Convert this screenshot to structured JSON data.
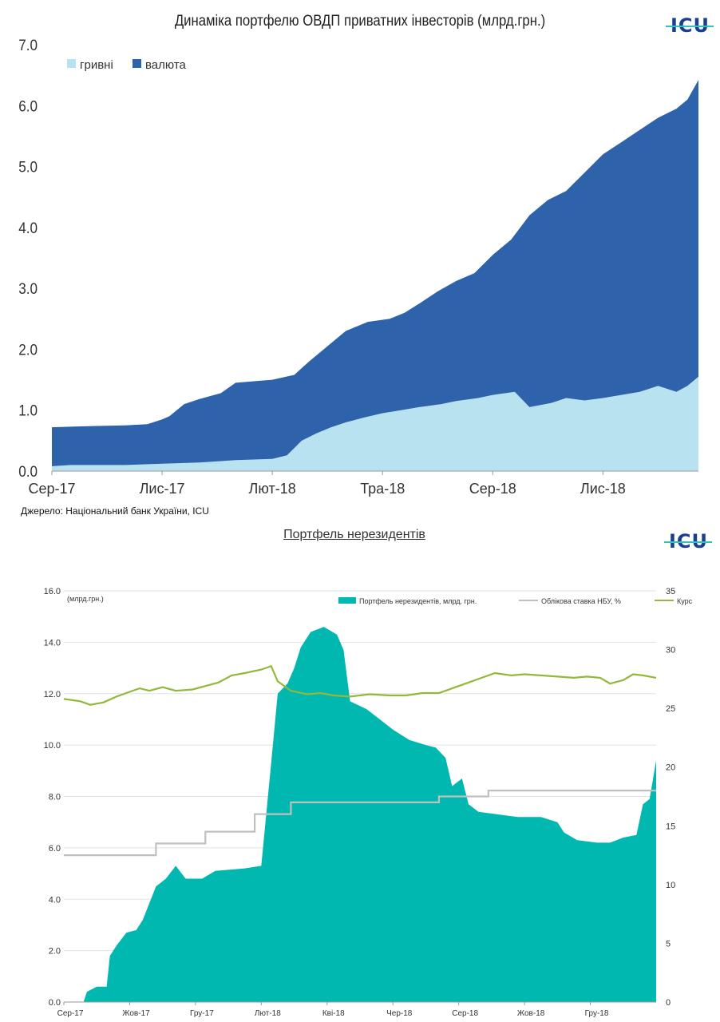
{
  "chart1": {
    "title": "Динаміка портфелю ОВДП приватних інвесторів (млрд.грн.)",
    "source": "Джерело: Національний банк України, ICU",
    "logo": "ICU",
    "type": "area",
    "legend": [
      {
        "name": "гривні",
        "color": "#b8e2ef"
      },
      {
        "name": "валюта",
        "color": "#2e62ab"
      }
    ],
    "y_ticks": [
      "0.0",
      "1.0",
      "2.0",
      "3.0",
      "4.0",
      "5.0",
      "6.0",
      "7.0"
    ],
    "x_ticks": [
      "Сер-17",
      "Лис-17",
      "Лют-18",
      "Тра-18",
      "Сер-18",
      "Лис-18"
    ],
    "ylim": [
      0,
      7
    ],
    "xlim": [
      0,
      17.6
    ],
    "total": [
      [
        0,
        0.72
      ],
      [
        0.6,
        0.73
      ],
      [
        1.2,
        0.74
      ],
      [
        2.0,
        0.75
      ],
      [
        2.6,
        0.77
      ],
      [
        3.0,
        0.85
      ],
      [
        3.2,
        0.9
      ],
      [
        3.6,
        1.1
      ],
      [
        4.0,
        1.18
      ],
      [
        4.6,
        1.28
      ],
      [
        5.0,
        1.45
      ],
      [
        5.6,
        1.48
      ],
      [
        6.0,
        1.5
      ],
      [
        6.6,
        1.58
      ],
      [
        7.0,
        1.8
      ],
      [
        7.5,
        2.05
      ],
      [
        8.0,
        2.3
      ],
      [
        8.6,
        2.45
      ],
      [
        9.2,
        2.5
      ],
      [
        9.6,
        2.6
      ],
      [
        10.0,
        2.75
      ],
      [
        10.5,
        2.95
      ],
      [
        11.0,
        3.12
      ],
      [
        11.5,
        3.25
      ],
      [
        12.0,
        3.55
      ],
      [
        12.5,
        3.8
      ],
      [
        13.0,
        4.2
      ],
      [
        13.5,
        4.45
      ],
      [
        14.0,
        4.6
      ],
      [
        14.5,
        4.9
      ],
      [
        15.0,
        5.2
      ],
      [
        15.5,
        5.4
      ],
      [
        16.0,
        5.6
      ],
      [
        16.5,
        5.8
      ],
      [
        17.0,
        5.95
      ],
      [
        17.3,
        6.1
      ],
      [
        17.6,
        6.42
      ]
    ],
    "uah": [
      [
        0,
        0.08
      ],
      [
        0.5,
        0.1
      ],
      [
        1.0,
        0.1
      ],
      [
        2.0,
        0.1
      ],
      [
        3.0,
        0.12
      ],
      [
        4.0,
        0.14
      ],
      [
        5.0,
        0.18
      ],
      [
        6.0,
        0.2
      ],
      [
        6.4,
        0.26
      ],
      [
        6.8,
        0.5
      ],
      [
        7.2,
        0.62
      ],
      [
        7.6,
        0.72
      ],
      [
        8.0,
        0.8
      ],
      [
        8.5,
        0.88
      ],
      [
        9.0,
        0.95
      ],
      [
        9.5,
        1.0
      ],
      [
        10.0,
        1.05
      ],
      [
        10.6,
        1.1
      ],
      [
        11.0,
        1.15
      ],
      [
        11.6,
        1.2
      ],
      [
        12.0,
        1.25
      ],
      [
        12.6,
        1.3
      ],
      [
        13.0,
        1.05
      ],
      [
        13.6,
        1.12
      ],
      [
        14.0,
        1.2
      ],
      [
        14.5,
        1.16
      ],
      [
        15.0,
        1.2
      ],
      [
        15.5,
        1.25
      ],
      [
        16.0,
        1.3
      ],
      [
        16.5,
        1.4
      ],
      [
        17.0,
        1.3
      ],
      [
        17.3,
        1.4
      ],
      [
        17.6,
        1.55
      ]
    ]
  },
  "chart2": {
    "title": "Портфель нерезидентів",
    "logo": "ICU",
    "type": "area",
    "unit_label": "(млрд.грн.)",
    "legend": [
      {
        "name": "Портфель нерезидентів, млрд. грн.",
        "color": "#00b8b0"
      },
      {
        "name": "Облікова ставка НБУ, %",
        "color": "#c0c0c0"
      },
      {
        "name": "Курс",
        "color": "#93b83a"
      }
    ],
    "y_ticks_left": [
      "0.0",
      "2.0",
      "4.0",
      "6.0",
      "8.0",
      "10.0",
      "12.0",
      "14.0",
      "16.0"
    ],
    "y_ticks_right": [
      "0",
      "5",
      "10",
      "15",
      "20",
      "25",
      "30",
      "35"
    ],
    "x_ticks": [
      "Сер-17",
      "Жов-17",
      "Гру-17",
      "Лют-18",
      "Кві-18",
      "Чер-18",
      "Сер-18",
      "Жов-18",
      "Гру-18"
    ],
    "ylim_left": [
      0,
      16
    ],
    "ylim_right": [
      0,
      35
    ],
    "xlim": [
      0,
      18
    ],
    "portfolio": [
      [
        0,
        0
      ],
      [
        0.6,
        0
      ],
      [
        0.7,
        0.4
      ],
      [
        1.0,
        0.6
      ],
      [
        1.3,
        0.6
      ],
      [
        1.4,
        1.8
      ],
      [
        1.6,
        2.2
      ],
      [
        1.9,
        2.7
      ],
      [
        2.2,
        2.8
      ],
      [
        2.4,
        3.2
      ],
      [
        2.8,
        4.5
      ],
      [
        3.1,
        4.8
      ],
      [
        3.4,
        5.3
      ],
      [
        3.7,
        4.8
      ],
      [
        4.2,
        4.8
      ],
      [
        4.6,
        5.1
      ],
      [
        5.5,
        5.2
      ],
      [
        6.0,
        5.3
      ],
      [
        6.3,
        9.3
      ],
      [
        6.5,
        12.0
      ],
      [
        6.8,
        12.4
      ],
      [
        7.0,
        13.0
      ],
      [
        7.2,
        13.8
      ],
      [
        7.5,
        14.4
      ],
      [
        7.9,
        14.6
      ],
      [
        8.3,
        14.3
      ],
      [
        8.5,
        13.7
      ],
      [
        8.7,
        11.7
      ],
      [
        9.2,
        11.4
      ],
      [
        9.6,
        11.0
      ],
      [
        10.0,
        10.6
      ],
      [
        10.5,
        10.2
      ],
      [
        11.0,
        10.0
      ],
      [
        11.3,
        9.9
      ],
      [
        11.6,
        9.5
      ],
      [
        11.8,
        8.4
      ],
      [
        12.1,
        8.7
      ],
      [
        12.3,
        7.7
      ],
      [
        12.6,
        7.4
      ],
      [
        13.2,
        7.3
      ],
      [
        13.8,
        7.2
      ],
      [
        14.5,
        7.2
      ],
      [
        15.0,
        7.0
      ],
      [
        15.2,
        6.6
      ],
      [
        15.6,
        6.3
      ],
      [
        16.2,
        6.2
      ],
      [
        16.6,
        6.2
      ],
      [
        17.0,
        6.4
      ],
      [
        17.4,
        6.5
      ],
      [
        17.6,
        7.7
      ],
      [
        17.8,
        7.9
      ],
      [
        18.0,
        9.4
      ]
    ],
    "rate": [
      [
        0,
        12.5
      ],
      [
        2.8,
        12.5
      ],
      [
        2.8,
        13.5
      ],
      [
        4.3,
        13.5
      ],
      [
        4.3,
        14.5
      ],
      [
        5.8,
        14.5
      ],
      [
        5.8,
        16.0
      ],
      [
        6.9,
        16.0
      ],
      [
        6.9,
        17.0
      ],
      [
        11.4,
        17.0
      ],
      [
        11.4,
        17.5
      ],
      [
        12.9,
        17.5
      ],
      [
        12.9,
        18.0
      ],
      [
        18.0,
        18.0
      ]
    ],
    "fx": [
      [
        0,
        25.8
      ],
      [
        0.5,
        25.6
      ],
      [
        0.8,
        25.3
      ],
      [
        1.2,
        25.5
      ],
      [
        1.6,
        26.0
      ],
      [
        2.0,
        26.4
      ],
      [
        2.3,
        26.7
      ],
      [
        2.6,
        26.5
      ],
      [
        3.0,
        26.8
      ],
      [
        3.4,
        26.5
      ],
      [
        3.9,
        26.6
      ],
      [
        4.3,
        26.9
      ],
      [
        4.7,
        27.2
      ],
      [
        5.1,
        27.8
      ],
      [
        5.5,
        28.0
      ],
      [
        6.0,
        28.3
      ],
      [
        6.3,
        28.6
      ],
      [
        6.5,
        27.3
      ],
      [
        6.9,
        26.5
      ],
      [
        7.4,
        26.2
      ],
      [
        7.8,
        26.3
      ],
      [
        8.2,
        26.1
      ],
      [
        8.7,
        26.0
      ],
      [
        9.3,
        26.2
      ],
      [
        9.9,
        26.1
      ],
      [
        10.4,
        26.1
      ],
      [
        10.9,
        26.3
      ],
      [
        11.4,
        26.3
      ],
      [
        11.9,
        26.8
      ],
      [
        12.3,
        27.2
      ],
      [
        12.7,
        27.6
      ],
      [
        13.1,
        28.0
      ],
      [
        13.6,
        27.8
      ],
      [
        14.0,
        27.9
      ],
      [
        14.5,
        27.8
      ],
      [
        15.0,
        27.7
      ],
      [
        15.5,
        27.6
      ],
      [
        15.9,
        27.7
      ],
      [
        16.3,
        27.6
      ],
      [
        16.6,
        27.1
      ],
      [
        17.0,
        27.4
      ],
      [
        17.3,
        27.9
      ],
      [
        17.6,
        27.8
      ],
      [
        18.0,
        27.6
      ]
    ]
  }
}
